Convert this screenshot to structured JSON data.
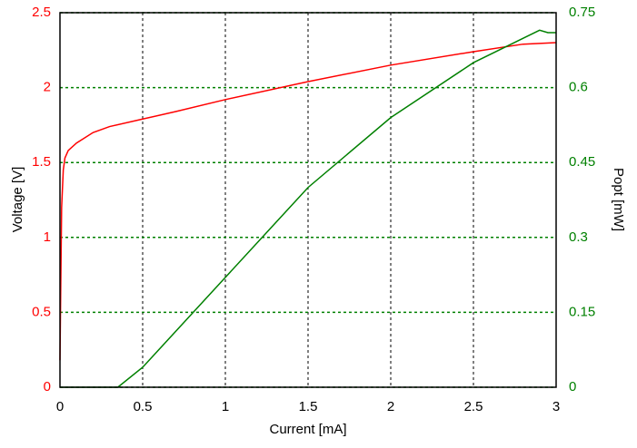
{
  "chart_data": {
    "type": "line",
    "x_label": "Current [mA]",
    "y_label": "Voltage [V]",
    "y2_label": "Popt [mW]",
    "xlim": [
      0,
      3
    ],
    "xticks": [
      0,
      0.5,
      1,
      1.5,
      2,
      2.5,
      3
    ],
    "ylim": [
      0,
      2.5
    ],
    "yticks": [
      0,
      0.5,
      1,
      1.5,
      2,
      2.5
    ],
    "y2lim": [
      0,
      0.75
    ],
    "y2ticks": [
      0,
      0.15,
      0.3,
      0.45,
      0.6,
      0.75
    ],
    "grid": true,
    "series": [
      {
        "name": "Voltage",
        "color": "#ff0000",
        "x": [
          0,
          0.005,
          0.01,
          0.02,
          0.03,
          0.05,
          0.1,
          0.2,
          0.3,
          0.5,
          0.7,
          1,
          1.5,
          2,
          2.5,
          2.8,
          3
        ],
        "values": [
          0.18,
          0.7,
          1.2,
          1.45,
          1.53,
          1.58,
          1.63,
          1.7,
          1.74,
          1.79,
          1.84,
          1.92,
          2.04,
          2.15,
          2.24,
          2.29,
          2.3
        ]
      },
      {
        "name": "Popt",
        "color": "#008000",
        "axis": "y2",
        "x": [
          0,
          0.35,
          0.5,
          1,
          1.5,
          2,
          2.5,
          2.9,
          2.95,
          3
        ],
        "values": [
          0,
          0,
          0.04,
          0.22,
          0.4,
          0.54,
          0.65,
          0.715,
          0.71,
          0.71
        ]
      }
    ]
  }
}
